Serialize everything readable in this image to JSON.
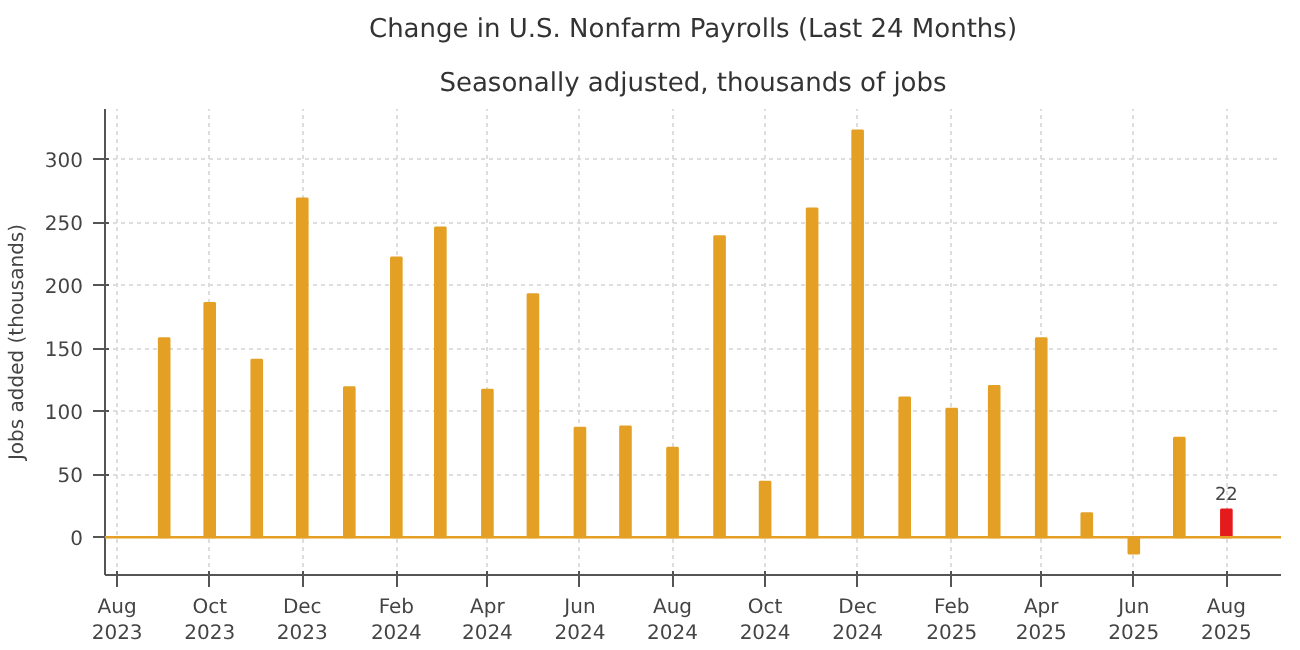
{
  "chart_data": {
    "type": "bar",
    "title": "Change in U.S. Nonfarm Payrolls (Last 24 Months)",
    "subtitle": "Seasonally adjusted, thousands of jobs",
    "ylabel": "Jobs added (thousands)",
    "x": [
      "2023-09",
      "2023-10",
      "2023-11",
      "2023-12",
      "2024-01",
      "2024-02",
      "2024-03",
      "2024-04",
      "2024-05",
      "2024-06",
      "2024-07",
      "2024-08",
      "2024-09",
      "2024-10",
      "2024-11",
      "2024-12",
      "2025-01",
      "2025-02",
      "2025-03",
      "2025-04",
      "2025-05",
      "2025-06",
      "2025-07",
      "2025-08"
    ],
    "values": [
      158,
      186,
      141,
      269,
      119,
      222,
      246,
      117,
      193,
      87,
      88,
      71,
      239,
      44,
      261,
      323,
      111,
      102,
      120,
      158,
      19,
      -13,
      79,
      22
    ],
    "colors": [
      "#e3a024",
      "#e3a024",
      "#e3a024",
      "#e3a024",
      "#e3a024",
      "#e3a024",
      "#e3a024",
      "#e3a024",
      "#e3a024",
      "#e3a024",
      "#e3a024",
      "#e3a024",
      "#e3a024",
      "#e3a024",
      "#e3a024",
      "#e3a024",
      "#e3a024",
      "#e3a024",
      "#e3a024",
      "#e3a024",
      "#e3a024",
      "#e3a024",
      "#e3a024",
      "#e41a1c"
    ],
    "value_labels": [
      null,
      null,
      null,
      null,
      null,
      null,
      null,
      null,
      null,
      null,
      null,
      null,
      null,
      null,
      null,
      null,
      null,
      null,
      null,
      null,
      null,
      null,
      null,
      "22"
    ],
    "ylim": [
      -30,
      340
    ],
    "yticks": [
      0,
      50,
      100,
      150,
      200,
      250,
      300
    ],
    "xlim": [
      "2023-07-24",
      "2025-09-06"
    ],
    "xticks": [
      {
        "value": "2023-08",
        "label": "Aug\n2023"
      },
      {
        "value": "2023-10",
        "label": "Oct\n2023"
      },
      {
        "value": "2023-12",
        "label": "Dec\n2023"
      },
      {
        "value": "2024-02",
        "label": "Feb\n2024"
      },
      {
        "value": "2024-04",
        "label": "Apr\n2024"
      },
      {
        "value": "2024-06",
        "label": "Jun\n2024"
      },
      {
        "value": "2024-08",
        "label": "Aug\n2024"
      },
      {
        "value": "2024-10",
        "label": "Oct\n2024"
      },
      {
        "value": "2024-12",
        "label": "Dec\n2024"
      },
      {
        "value": "2025-02",
        "label": "Feb\n2025"
      },
      {
        "value": "2025-04",
        "label": "Apr\n2025"
      },
      {
        "value": "2025-06",
        "label": "Jun\n2025"
      },
      {
        "value": "2025-08",
        "label": "Aug\n2025"
      }
    ],
    "ref_lines": [
      {
        "axis": "y",
        "value": 0,
        "color": "#e3a024"
      }
    ],
    "grid": true
  }
}
